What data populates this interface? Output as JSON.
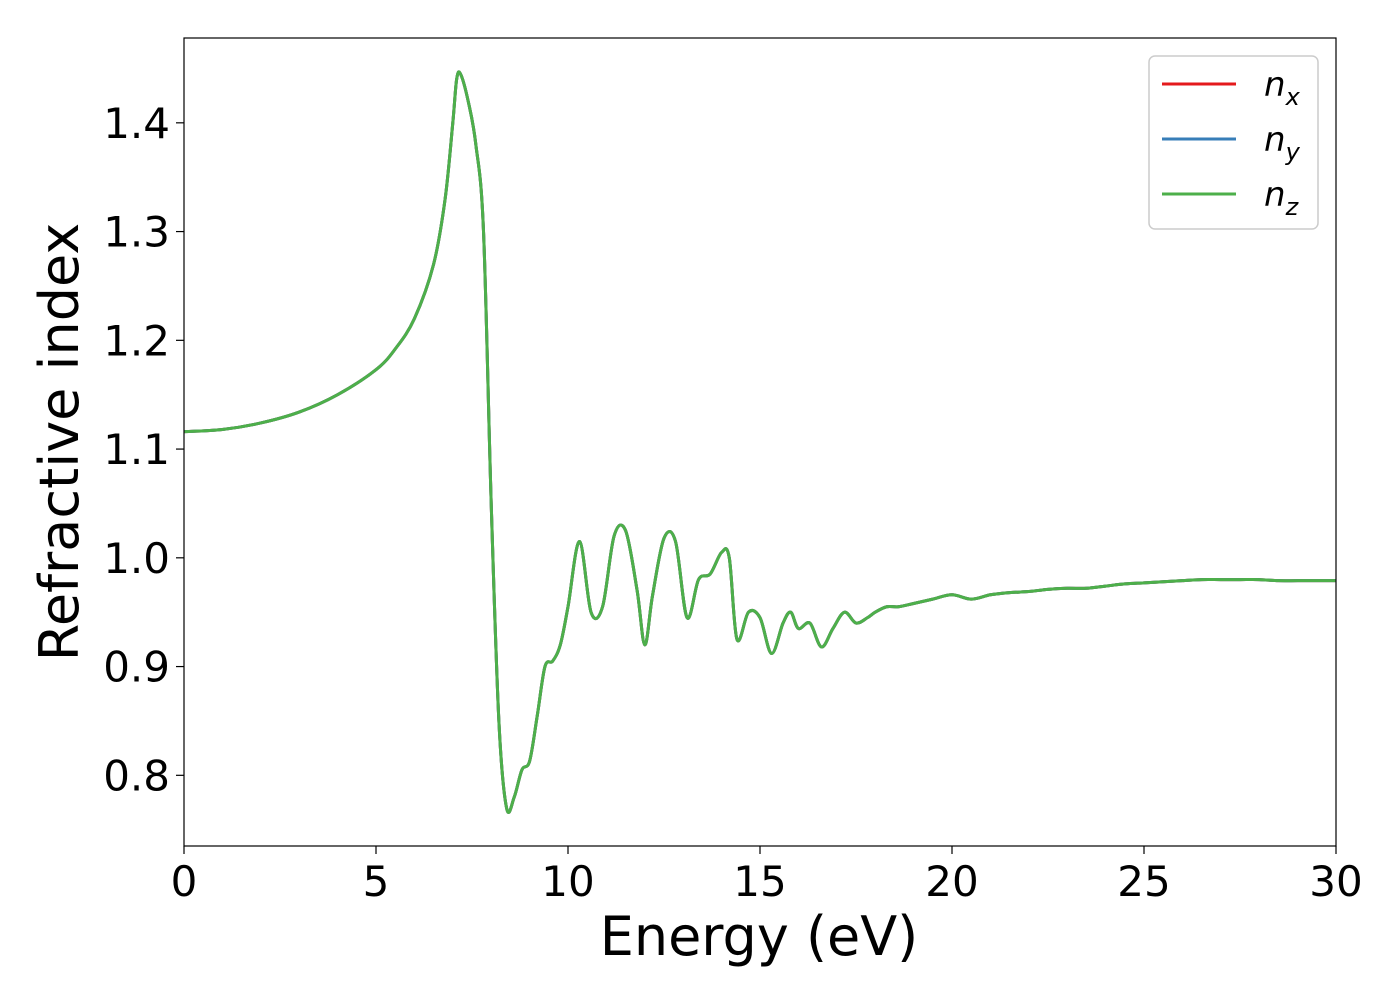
{
  "chart_data": {
    "type": "line",
    "xlabel": "Energy (eV)",
    "ylabel": "Refractive index",
    "xlim": [
      0,
      30
    ],
    "ylim": [
      0.735,
      1.478
    ],
    "xticks": [
      0,
      5,
      10,
      15,
      20,
      25,
      30
    ],
    "xtick_labels": [
      "0",
      "5",
      "10",
      "15",
      "20",
      "25",
      "30"
    ],
    "yticks": [
      0.8,
      0.9,
      1.0,
      1.1,
      1.2,
      1.3,
      1.4
    ],
    "ytick_labels": [
      "0.8",
      "0.9",
      "1.0",
      "1.1",
      "1.2",
      "1.3",
      "1.4"
    ],
    "grid": false,
    "legend_position": "top-right",
    "series": [
      {
        "name": "n",
        "subscript": "x",
        "color": "#e41a1c"
      },
      {
        "name": "n",
        "subscript": "y",
        "color": "#377eb8"
      },
      {
        "name": "n",
        "subscript": "z",
        "color": "#4daf4a"
      }
    ],
    "x": [
      0,
      1,
      2,
      3,
      4,
      5,
      5.5,
      6,
      6.5,
      6.8,
      7.0,
      7.1,
      7.2,
      7.4,
      7.6,
      7.8,
      8.0,
      8.2,
      8.4,
      8.6,
      8.8,
      9.0,
      9.2,
      9.4,
      9.6,
      9.8,
      10.0,
      10.3,
      10.6,
      10.9,
      11.2,
      11.5,
      11.8,
      12.0,
      12.2,
      12.5,
      12.8,
      13.1,
      13.4,
      13.7,
      14.0,
      14.2,
      14.4,
      14.7,
      15.0,
      15.3,
      15.6,
      15.8,
      16.0,
      16.3,
      16.6,
      16.9,
      17.2,
      17.5,
      17.8,
      18.0,
      18.3,
      18.6,
      19.0,
      19.5,
      20.0,
      20.5,
      21.0,
      21.5,
      22.0,
      22.5,
      23.0,
      23.5,
      24.0,
      24.5,
      25.0,
      25.5,
      26.0,
      26.5,
      27.0,
      27.5,
      28.0,
      28.5,
      29.0,
      29.5,
      30.0
    ],
    "values_common": [
      1.116,
      1.118,
      1.124,
      1.134,
      1.15,
      1.173,
      1.192,
      1.22,
      1.27,
      1.33,
      1.4,
      1.44,
      1.445,
      1.42,
      1.38,
      1.3,
      1.05,
      0.85,
      0.77,
      0.78,
      0.805,
      0.813,
      0.855,
      0.9,
      0.905,
      0.92,
      0.955,
      1.015,
      0.95,
      0.955,
      1.02,
      1.025,
      0.97,
      0.92,
      0.965,
      1.018,
      1.015,
      0.945,
      0.98,
      0.985,
      1.005,
      1.0,
      0.925,
      0.95,
      0.945,
      0.912,
      0.94,
      0.95,
      0.935,
      0.94,
      0.918,
      0.935,
      0.95,
      0.94,
      0.945,
      0.95,
      0.955,
      0.955,
      0.958,
      0.962,
      0.966,
      0.962,
      0.966,
      0.968,
      0.969,
      0.971,
      0.972,
      0.972,
      0.974,
      0.976,
      0.977,
      0.978,
      0.979,
      0.98,
      0.98,
      0.98,
      0.98,
      0.979,
      0.979,
      0.979,
      0.979
    ]
  }
}
